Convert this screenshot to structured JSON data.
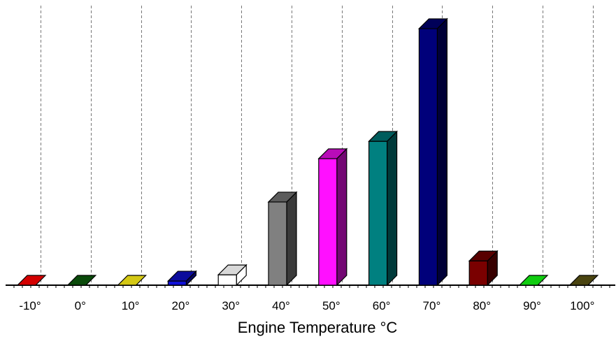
{
  "chart_data": {
    "type": "bar",
    "xlabel": "Engine Temperature °C",
    "categories": [
      "-10°",
      "0°",
      "10°",
      "20°",
      "30°",
      "40°",
      "50°",
      "60°",
      "70°",
      "80°",
      "90°",
      "100°"
    ],
    "values": [
      0,
      0,
      0,
      1.2,
      3,
      24,
      36.5,
      41.5,
      74,
      7,
      0,
      0
    ],
    "colors": [
      "#d40000",
      "#0a4a0a",
      "#d4c814",
      "#1010d8",
      "#ffffff",
      "#808080",
      "#ff10ff",
      "#008080",
      "#00007a",
      "#7a0000",
      "#10cc10",
      "#4a4410"
    ],
    "ylim": [
      0,
      75
    ],
    "grid": true,
    "legend": false
  }
}
